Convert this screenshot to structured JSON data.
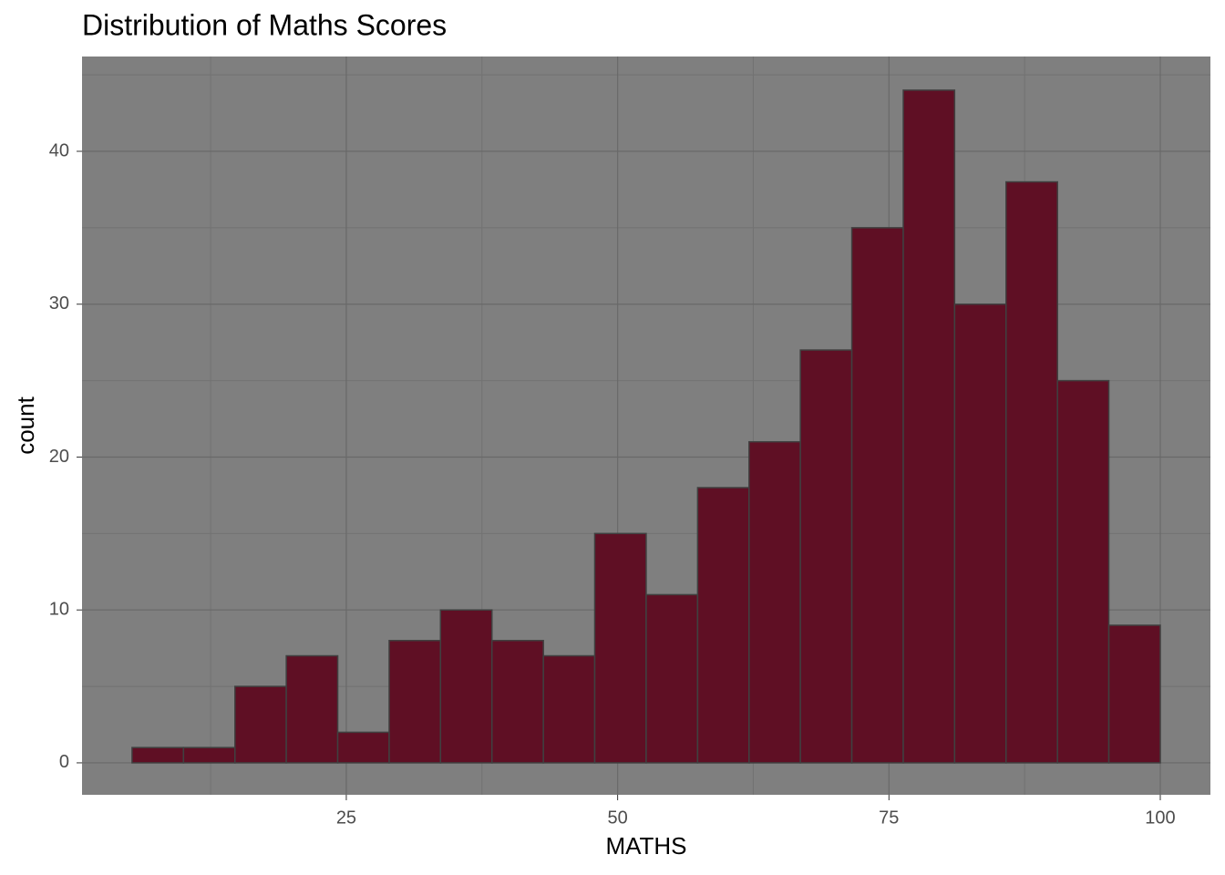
{
  "chart_data": {
    "type": "histogram",
    "title": "Distribution of Maths Scores",
    "x_label": "MATHS",
    "y_label": "count",
    "bins": [
      5.26,
      10.0,
      14.74,
      19.47,
      24.21,
      28.95,
      33.68,
      38.42,
      43.16,
      47.89,
      52.63,
      57.37,
      62.11,
      66.84,
      71.58,
      76.32,
      81.05,
      85.79,
      90.53,
      95.26,
      100
    ],
    "values": [
      1,
      1,
      5,
      7,
      2,
      8,
      10,
      8,
      7,
      15,
      11,
      18,
      21,
      27,
      35,
      44,
      30,
      38,
      25,
      9
    ],
    "color": "#5f0f24",
    "edge_color": "#404040",
    "xlim": [
      0.65,
      104.62
    ],
    "xticks": [
      25,
      50,
      75,
      100
    ],
    "ylim": [
      -2.09,
      46.2
    ],
    "yticks": [
      0,
      10,
      20,
      30,
      40
    ],
    "grid": true,
    "panel_color": "#7f7f7f"
  }
}
